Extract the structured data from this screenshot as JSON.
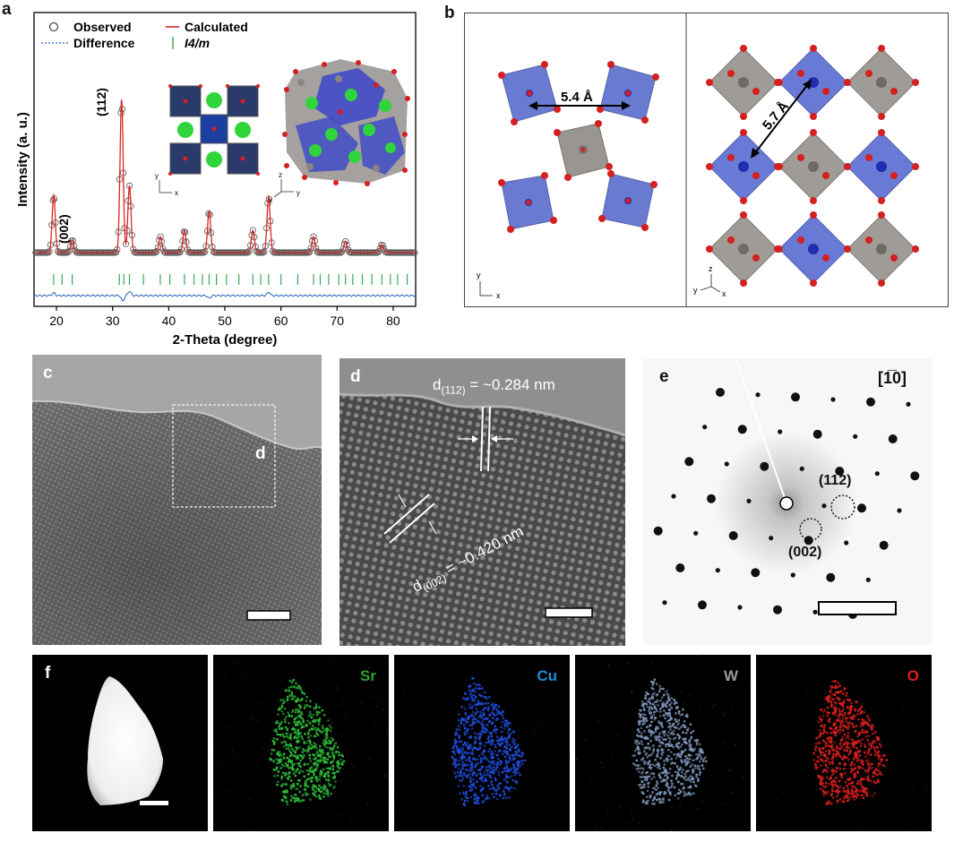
{
  "panel_labels": {
    "a": "a",
    "b": "b",
    "c": "c",
    "d": "d",
    "e": "e",
    "f": "f"
  },
  "panel_a": {
    "legend": {
      "observed": "Observed",
      "calculated": "Calculated",
      "difference": "Difference",
      "phase": "I4/m"
    },
    "peak_labels": {
      "p112": "(112)",
      "p002": "(002)"
    },
    "inset_axes": {
      "left": [
        "y",
        "x"
      ],
      "right": [
        "z",
        "x",
        "y"
      ]
    }
  },
  "chart_data": {
    "type": "line",
    "title": "",
    "xlabel": "2-Theta (degree)",
    "ylabel": "Intensity (a. u.)",
    "xlim": [
      16,
      84
    ],
    "xticks": [
      20,
      30,
      40,
      50,
      60,
      70,
      80
    ],
    "series": [
      {
        "name": "Observed",
        "marker": "open-circle",
        "color": "#333333"
      },
      {
        "name": "Calculated",
        "color": "#d62728"
      },
      {
        "name": "Difference",
        "color": "#1f5fb5"
      },
      {
        "name": "I4/m",
        "marker": "tick",
        "color": "#3aa655"
      }
    ],
    "peaks": [
      {
        "two_theta": 19.5,
        "height": 0.36
      },
      {
        "two_theta": 22.8,
        "height": 0.08
      },
      {
        "two_theta": 31.6,
        "height": 0.96
      },
      {
        "two_theta": 33.0,
        "height": 0.42
      },
      {
        "two_theta": 38.5,
        "height": 0.1
      },
      {
        "two_theta": 42.8,
        "height": 0.14
      },
      {
        "two_theta": 47.2,
        "height": 0.26
      },
      {
        "two_theta": 55.0,
        "height": 0.14
      },
      {
        "two_theta": 57.8,
        "height": 0.35
      },
      {
        "two_theta": 65.8,
        "height": 0.1
      },
      {
        "two_theta": 71.5,
        "height": 0.07
      },
      {
        "two_theta": 78.0,
        "height": 0.05
      }
    ],
    "reflection_ticks": [
      19.5,
      21.0,
      22.8,
      31.2,
      32.0,
      33.0,
      35.5,
      38.5,
      40.2,
      42.8,
      44.5,
      46.0,
      47.2,
      48.5,
      50.3,
      52.5,
      55.0,
      56.4,
      57.8,
      60.0,
      63.0,
      65.8,
      67.0,
      68.5,
      70.3,
      71.5,
      72.8,
      74.5,
      76.2,
      78.0,
      79.5,
      80.8,
      82.5
    ],
    "differences": [
      {
        "two_theta": 31.8,
        "value": -0.6
      },
      {
        "two_theta": 33.0,
        "value": 0.5
      },
      {
        "two_theta": 19.5,
        "value": 0.3
      },
      {
        "two_theta": 47.2,
        "value": -0.3
      },
      {
        "two_theta": 57.8,
        "value": 0.4
      }
    ]
  },
  "panel_b": {
    "left_distance": "5.4 Å",
    "right_distance": "5.7 Å",
    "left_axes": [
      "y",
      "x"
    ],
    "right_axes": [
      "z",
      "y",
      "x"
    ]
  },
  "panel_c": {
    "box_label": "d"
  },
  "panel_d": {
    "d112_prefix": "d",
    "d112_sub": "(112)",
    "d112_value": " = ~0.284 nm",
    "d002_prefix": "d",
    "d002_sub": "(002)",
    "d002_value": " = ~0.420 nm"
  },
  "panel_e": {
    "zone_axis": "[1̅0]",
    "spot_112": "(112)",
    "spot_002": "(002)"
  },
  "panel_f": {
    "maps": [
      {
        "label": "",
        "color": "#ffffff"
      },
      {
        "label": "Sr",
        "color": "#2fbf3a"
      },
      {
        "label": "Cu",
        "color": "#1f5fe0"
      },
      {
        "label": "W",
        "color": "#8aa4c8"
      },
      {
        "label": "O",
        "color": "#e0201e"
      }
    ],
    "label_colors": {
      "Sr": "#2ca02c",
      "Cu": "#1f8fd6",
      "W": "#9a9a9a",
      "O": "#e0201e"
    }
  }
}
